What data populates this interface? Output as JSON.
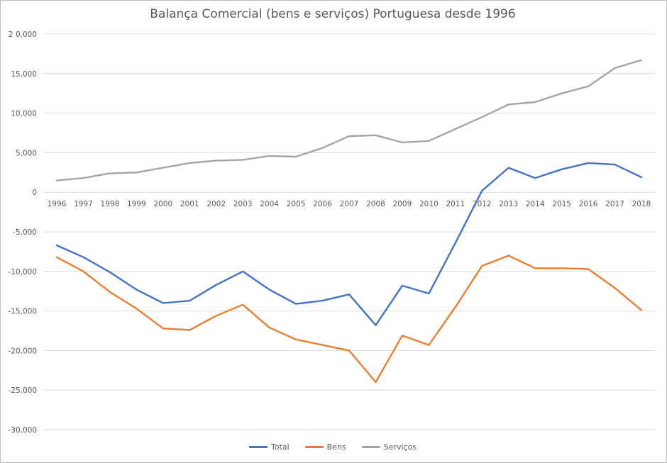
{
  "chart_data": {
    "type": "line",
    "title": "Balança Comercial (bens e serviços) Portuguesa desde 1996",
    "xlabel": "",
    "ylabel": "",
    "ylim": [
      -30000,
      20000
    ],
    "yticks": [
      20000,
      15000,
      10000,
      5000,
      0,
      -5000,
      -10000,
      -15000,
      -20000,
      -25000,
      -30000
    ],
    "ytick_labels": [
      "2 0,000",
      "15,000",
      "10,000",
      "5,000",
      "0",
      "-5,000",
      "-10,000",
      "-15,000",
      "-20,000",
      "-25,000",
      "-30,000"
    ],
    "grid": true,
    "legend_position": "bottom",
    "categories": [
      "1996",
      "1997",
      "1998",
      "1999",
      "2000",
      "2001",
      "2002",
      "2003",
      "2004",
      "2005",
      "2006",
      "2007",
      "2008",
      "2009",
      "2010",
      "2011",
      "2012",
      "2013",
      "2014",
      "2015",
      "2016",
      "2017",
      "2018"
    ],
    "series": [
      {
        "name": "Total",
        "color": "#4472c4",
        "values": [
          -6700,
          -8200,
          -10100,
          -12300,
          -14000,
          -13700,
          -11700,
          -10000,
          -12300,
          -14100,
          -13700,
          -12900,
          -16800,
          -11800,
          -12800,
          -6400,
          200,
          3100,
          1800,
          2900,
          3700,
          3500,
          1900
        ]
      },
      {
        "name": "Bens",
        "color": "#ed7d31",
        "values": [
          -8200,
          -10000,
          -12600,
          -14700,
          -17200,
          -17400,
          -15600,
          -14200,
          -17100,
          -18600,
          -19300,
          -20000,
          -24000,
          -18100,
          -19300,
          -14500,
          -9300,
          -8000,
          -9600,
          -9600,
          -9700,
          -12100,
          -14900
        ]
      },
      {
        "name": "Serviços",
        "color": "#a5a5a5",
        "values": [
          1500,
          1800,
          2400,
          2500,
          3100,
          3700,
          4000,
          4100,
          4600,
          4500,
          5600,
          7100,
          7200,
          6300,
          6500,
          8000,
          9500,
          11100,
          11400,
          12500,
          13400,
          15700,
          16700
        ]
      }
    ]
  }
}
